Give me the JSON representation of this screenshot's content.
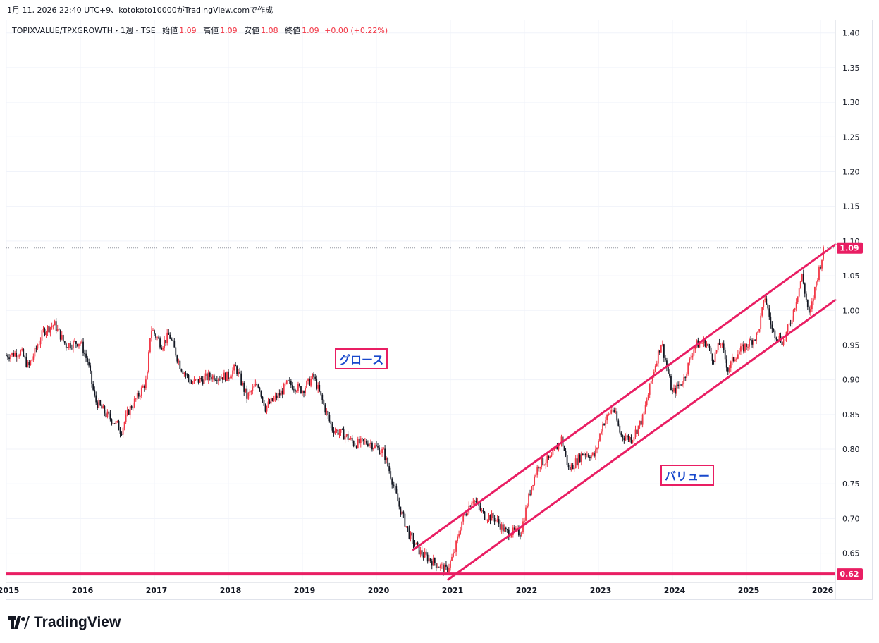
{
  "caption": "1月 11, 2026 22:40 UTC+9、kotokoto10000がTradingView.comで作成",
  "legend": {
    "symbol": "TOPIXVALUE/TPXGROWTH・1週・TSE",
    "open_label": "始値",
    "open": "1.09",
    "high_label": "高値",
    "high": "1.09",
    "low_label": "安値",
    "low": "1.08",
    "close_label": "終値",
    "close": "1.09",
    "change": "+0.00 (+0.22%)"
  },
  "annotations": {
    "growth": "グロース",
    "value": "バリュー"
  },
  "footer": {
    "brand": "TradingView"
  },
  "colors": {
    "up": "#f23645",
    "down": "#131722",
    "channel": "#e91e63",
    "grid": "#f0f3fa",
    "hline": "#e91e63"
  },
  "chart_data": {
    "type": "candlestick",
    "title": "TOPIXVALUE/TPXGROWTH",
    "interval": "1W",
    "xlim": [
      2015.0,
      2026.2
    ],
    "ylim": [
      0.612,
      1.418
    ],
    "x_ticks": [
      2015,
      2016,
      2017,
      2018,
      2019,
      2020,
      2021,
      2022,
      2023,
      2024,
      2025,
      2026
    ],
    "y_ticks": [
      0.65,
      0.7,
      0.75,
      0.8,
      0.85,
      0.9,
      0.95,
      1.0,
      1.05,
      1.1,
      1.15,
      1.2,
      1.25,
      1.3,
      1.35,
      1.4
    ],
    "last_price": 1.09,
    "last_price_label": "1.09",
    "hline": 0.62,
    "hline_label": "0.62",
    "path_points": [
      [
        2015.0,
        0.935
      ],
      [
        2015.2,
        0.94
      ],
      [
        2015.3,
        0.918
      ],
      [
        2015.5,
        0.97
      ],
      [
        2015.65,
        0.98
      ],
      [
        2015.8,
        0.95
      ],
      [
        2016.0,
        0.955
      ],
      [
        2016.1,
        0.925
      ],
      [
        2016.2,
        0.87
      ],
      [
        2016.35,
        0.85
      ],
      [
        2016.5,
        0.835
      ],
      [
        2016.55,
        0.825
      ],
      [
        2016.65,
        0.855
      ],
      [
        2016.8,
        0.88
      ],
      [
        2016.9,
        0.9
      ],
      [
        2016.95,
        0.975
      ],
      [
        2017.1,
        0.95
      ],
      [
        2017.2,
        0.965
      ],
      [
        2017.35,
        0.92
      ],
      [
        2017.5,
        0.895
      ],
      [
        2017.75,
        0.905
      ],
      [
        2018.0,
        0.905
      ],
      [
        2018.1,
        0.918
      ],
      [
        2018.25,
        0.875
      ],
      [
        2018.4,
        0.895
      ],
      [
        2018.5,
        0.86
      ],
      [
        2018.7,
        0.88
      ],
      [
        2018.8,
        0.895
      ],
      [
        2019.0,
        0.885
      ],
      [
        2019.15,
        0.905
      ],
      [
        2019.3,
        0.86
      ],
      [
        2019.4,
        0.83
      ],
      [
        2019.6,
        0.818
      ],
      [
        2019.7,
        0.808
      ],
      [
        2019.9,
        0.81
      ],
      [
        2020.0,
        0.802
      ],
      [
        2020.1,
        0.795
      ],
      [
        2020.2,
        0.76
      ],
      [
        2020.3,
        0.72
      ],
      [
        2020.45,
        0.675
      ],
      [
        2020.6,
        0.65
      ],
      [
        2020.8,
        0.635
      ],
      [
        2020.95,
        0.625
      ],
      [
        2021.05,
        0.65
      ],
      [
        2021.15,
        0.695
      ],
      [
        2021.3,
        0.73
      ],
      [
        2021.45,
        0.705
      ],
      [
        2021.6,
        0.7
      ],
      [
        2021.75,
        0.68
      ],
      [
        2021.95,
        0.68
      ],
      [
        2022.1,
        0.75
      ],
      [
        2022.2,
        0.78
      ],
      [
        2022.35,
        0.785
      ],
      [
        2022.5,
        0.815
      ],
      [
        2022.6,
        0.77
      ],
      [
        2022.8,
        0.795
      ],
      [
        2022.95,
        0.79
      ],
      [
        2023.05,
        0.835
      ],
      [
        2023.2,
        0.86
      ],
      [
        2023.3,
        0.82
      ],
      [
        2023.45,
        0.815
      ],
      [
        2023.6,
        0.845
      ],
      [
        2023.75,
        0.915
      ],
      [
        2023.85,
        0.955
      ],
      [
        2023.95,
        0.905
      ],
      [
        2024.0,
        0.88
      ],
      [
        2024.15,
        0.9
      ],
      [
        2024.3,
        0.95
      ],
      [
        2024.45,
        0.955
      ],
      [
        2024.55,
        0.93
      ],
      [
        2024.65,
        0.955
      ],
      [
        2024.75,
        0.915
      ],
      [
        2024.85,
        0.935
      ],
      [
        2025.0,
        0.95
      ],
      [
        2025.15,
        0.965
      ],
      [
        2025.25,
        1.02
      ],
      [
        2025.35,
        0.97
      ],
      [
        2025.5,
        0.955
      ],
      [
        2025.6,
        0.985
      ],
      [
        2025.75,
        1.05
      ],
      [
        2025.85,
        0.99
      ],
      [
        2025.95,
        1.045
      ],
      [
        2026.05,
        1.09
      ]
    ],
    "channel_lines": [
      {
        "name": "upper",
        "x1": 2020.5,
        "y1": 0.655,
        "x2": 2026.2,
        "y2": 1.095
      },
      {
        "name": "lower",
        "x1": 2020.97,
        "y1": 0.612,
        "x2": 2026.2,
        "y2": 1.015
      }
    ]
  }
}
